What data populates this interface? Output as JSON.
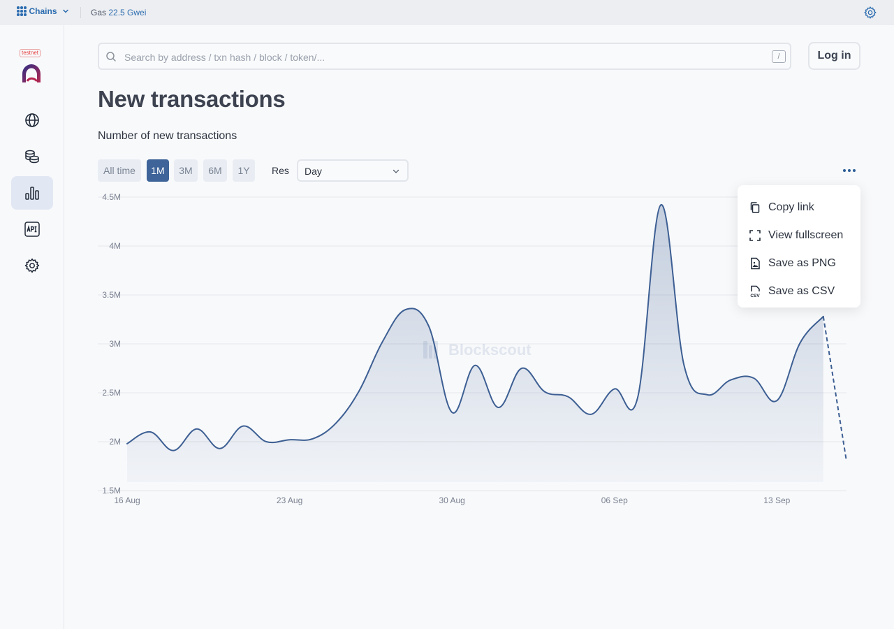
{
  "topbar": {
    "chains_label": "Chains",
    "gas_label": "Gas",
    "gas_value": "22.5 Gwei"
  },
  "sidebar": {
    "network_badge": "testnet",
    "items": [
      {
        "name": "globe-icon"
      },
      {
        "name": "tokens-icon"
      },
      {
        "name": "stats-icon",
        "active": true
      },
      {
        "name": "api-icon"
      },
      {
        "name": "settings-icon"
      }
    ]
  },
  "search": {
    "placeholder": "Search by address / txn hash / block / token/...",
    "shortcut": "/"
  },
  "header": {
    "login_label": "Log in"
  },
  "page": {
    "title": "New transactions",
    "chart_title": "Number of new transactions"
  },
  "controls": {
    "intervals": [
      {
        "label": "All time",
        "active": false
      },
      {
        "label": "1M",
        "active": true
      },
      {
        "label": "3M",
        "active": false
      },
      {
        "label": "6M",
        "active": false
      },
      {
        "label": "1Y",
        "active": false
      }
    ],
    "resolution_label": "Res",
    "resolution_value": "Day"
  },
  "menu": {
    "items": [
      {
        "label": "Copy link",
        "icon": "copy-icon"
      },
      {
        "label": "View fullscreen",
        "icon": "fullscreen-icon"
      },
      {
        "label": "Save as PNG",
        "icon": "image-file-icon"
      },
      {
        "label": "Save as CSV",
        "icon": "csv-file-icon"
      }
    ]
  },
  "watermark": "Blockscout",
  "colors": {
    "accent": "#3e6499",
    "line": "#3d5f93",
    "link": "#2b6cb0"
  },
  "chart_data": {
    "type": "area",
    "title": "Number of new transactions",
    "xlabel": "",
    "ylabel": "",
    "x_ticks": [
      "16 Aug",
      "23 Aug",
      "30 Aug",
      "06 Sep",
      "13 Sep"
    ],
    "y_ticks": [
      "1.5M",
      "2M",
      "2.5M",
      "3M",
      "3.5M",
      "4M",
      "4.5M"
    ],
    "ylim": [
      1500000,
      4500000
    ],
    "grid": true,
    "x": [
      "16 Aug",
      "17 Aug",
      "18 Aug",
      "19 Aug",
      "20 Aug",
      "21 Aug",
      "22 Aug",
      "23 Aug",
      "24 Aug",
      "25 Aug",
      "26 Aug",
      "27 Aug",
      "28 Aug",
      "29 Aug",
      "30 Aug",
      "31 Aug",
      "01 Sep",
      "02 Sep",
      "03 Sep",
      "04 Sep",
      "05 Sep",
      "06 Sep",
      "07 Sep",
      "08 Sep",
      "09 Sep",
      "10 Sep",
      "11 Sep",
      "12 Sep",
      "13 Sep",
      "14 Sep",
      "15 Sep",
      "16 Sep"
    ],
    "series": [
      {
        "values": [
          1980000,
          2100000,
          1910000,
          2130000,
          1930000,
          2160000,
          2000000,
          2020000,
          2030000,
          2190000,
          2520000,
          3020000,
          3350000,
          3180000,
          2300000,
          2780000,
          2350000,
          2750000,
          2510000,
          2460000,
          2280000,
          2540000,
          2450000,
          4420000,
          2780000,
          2480000,
          2630000,
          2650000,
          2420000,
          3010000,
          3280000,
          1800000
        ],
        "partial_from_index": 30
      }
    ]
  }
}
